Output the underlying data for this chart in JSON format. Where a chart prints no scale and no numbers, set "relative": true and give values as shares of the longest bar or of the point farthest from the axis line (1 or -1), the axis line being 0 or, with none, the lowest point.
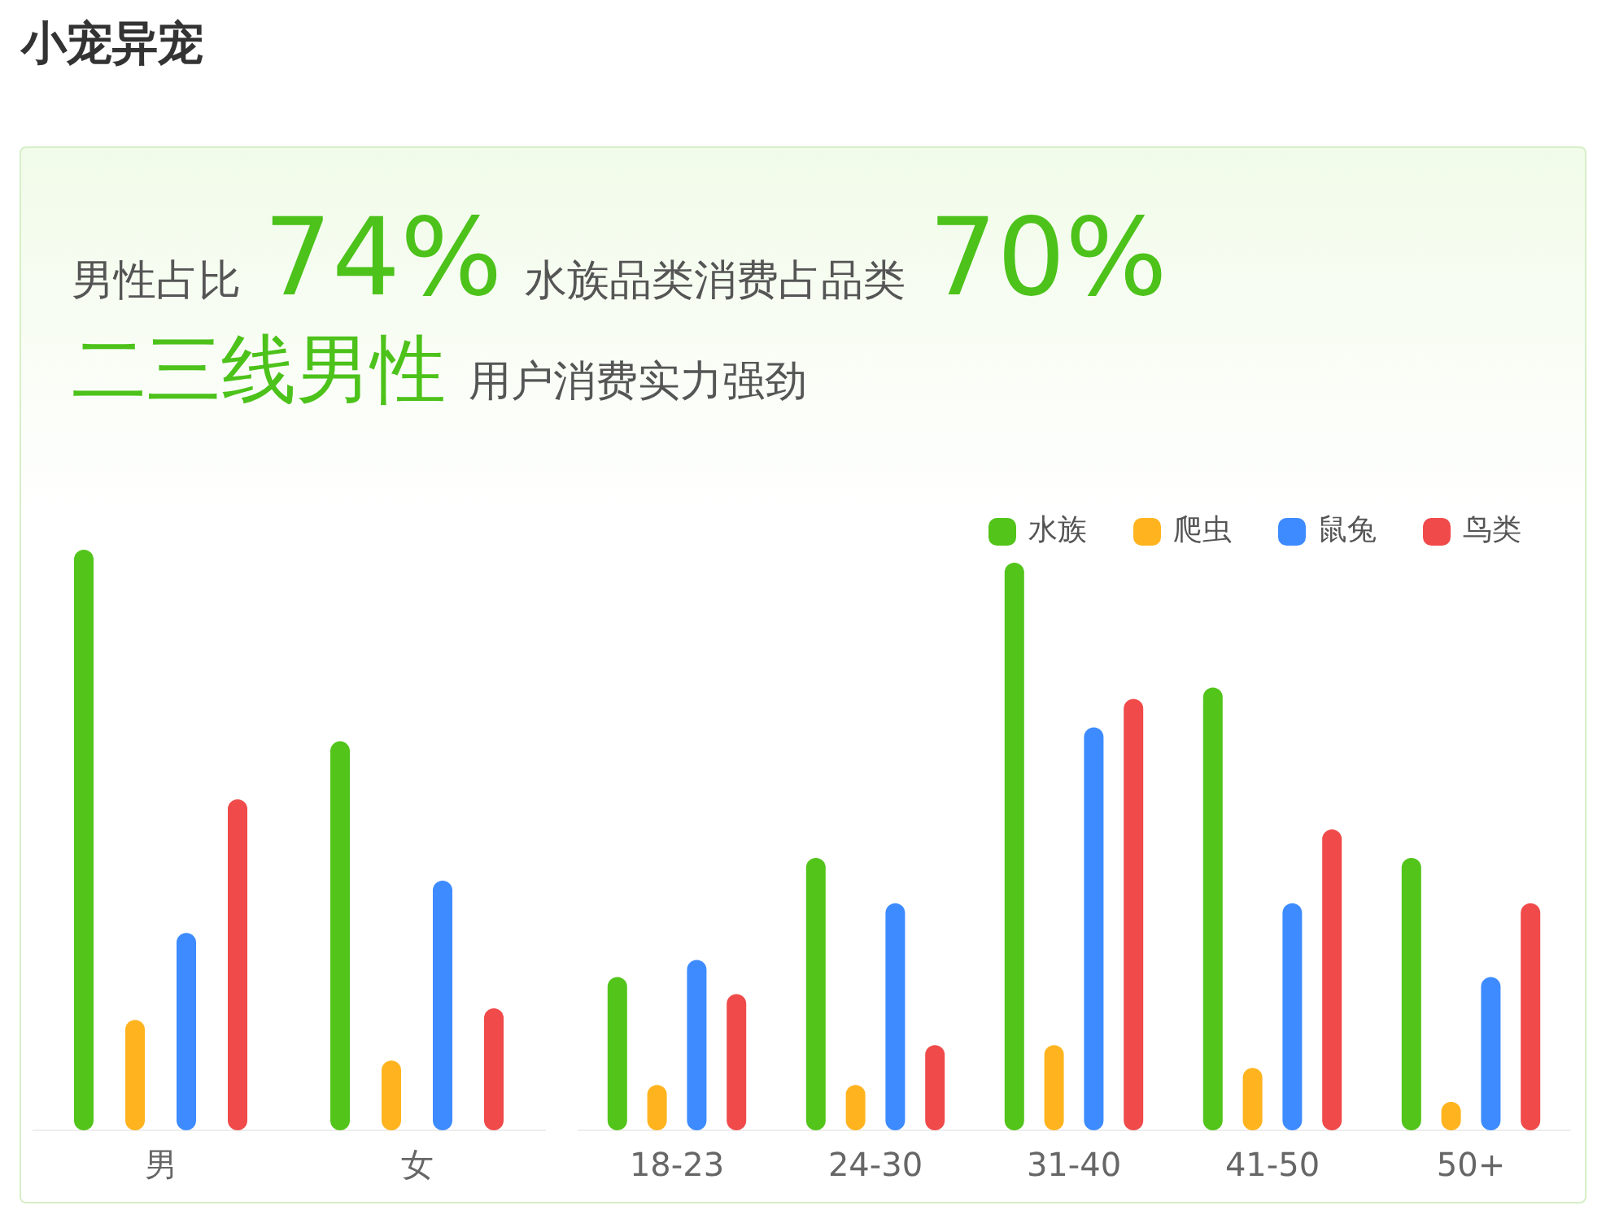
{
  "chart_data": [
    {
      "type": "bar",
      "title": "小宠异宠",
      "annotations": [
        "男性占比",
        "74%",
        "水族品类消费占品类",
        "70%",
        "二三线男性",
        "用户消费实力强劲"
      ],
      "relative": true,
      "legend": false,
      "categories": [
        "男",
        "女"
      ],
      "series": [
        {
          "color": "#52c41a",
          "values": [
            1,
            0.67
          ]
        },
        {
          "color": "#ffb41f",
          "values": [
            0.19,
            0.12
          ]
        },
        {
          "color": "#3d8bff",
          "values": [
            0.34,
            0.43
          ]
        },
        {
          "color": "#f04a4a",
          "values": [
            0.57,
            0.21
          ]
        }
      ]
    },
    {
      "type": "bar",
      "relative": true,
      "legend": "top right",
      "categories": [
        "18-23",
        "24-30",
        "31-40",
        "41-50",
        "50+"
      ],
      "series": [
        {
          "name": "水族",
          "color": "#52c41a",
          "values": [
            0.27,
            0.48,
            1,
            0.78,
            0.48
          ]
        },
        {
          "name": "爬虫",
          "color": "#ffb41f",
          "values": [
            0.08,
            0.08,
            0.15,
            0.11,
            0.05
          ]
        },
        {
          "name": "鼠兔",
          "color": "#3d8bff",
          "values": [
            0.3,
            0.4,
            0.71,
            0.4,
            0.27
          ]
        },
        {
          "name": "鸟类",
          "color": "#f04a4a",
          "values": [
            0.24,
            0.15,
            0.76,
            0.53,
            0.4
          ]
        }
      ]
    }
  ]
}
